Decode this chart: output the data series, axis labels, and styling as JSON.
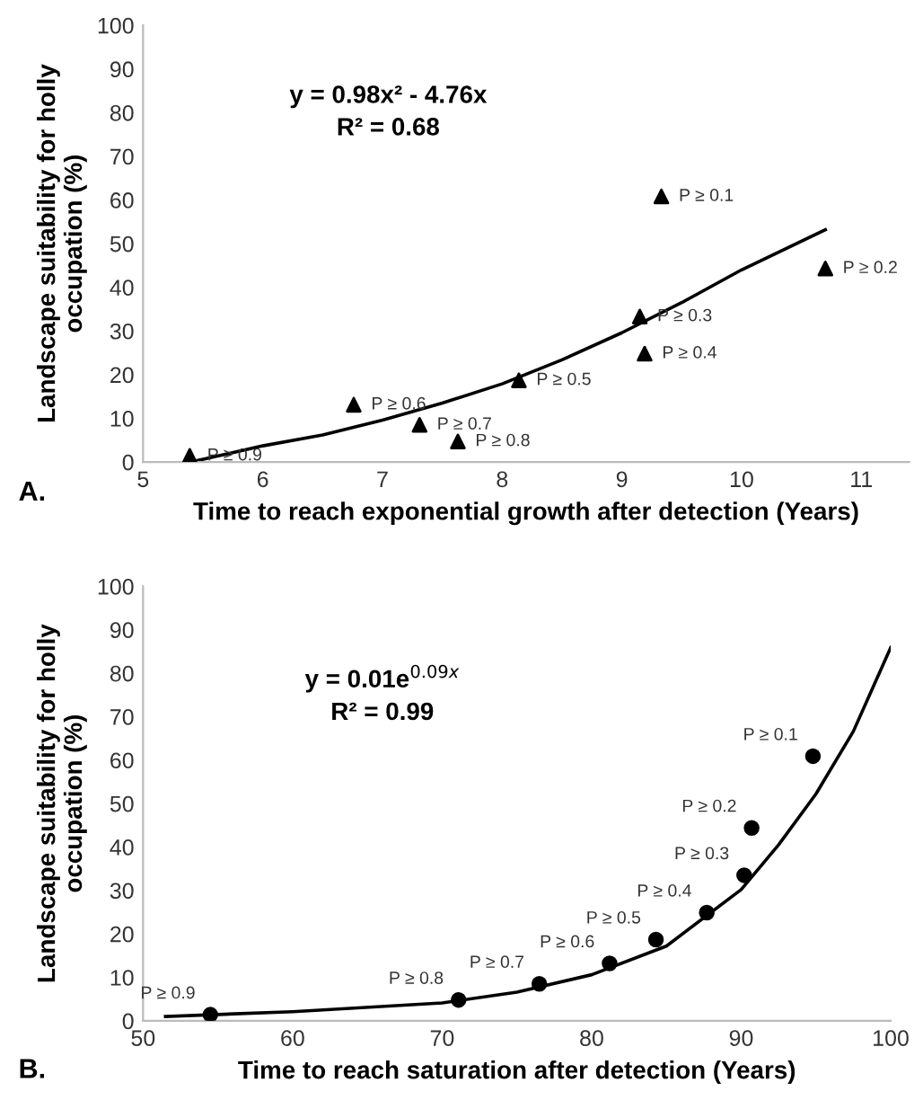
{
  "chart_data": [
    {
      "type": "scatter",
      "xlabel": "Time to reach exponential growth after detection (Years)",
      "ylabel": "Landscape suitability for holly\noccupation (%)",
      "xlim": [
        5,
        11.4
      ],
      "xticks": [
        5,
        6,
        7,
        8,
        9,
        10,
        11
      ],
      "ylim": [
        0,
        100
      ],
      "yticks": [
        0,
        10,
        20,
        30,
        40,
        50,
        60,
        70,
        80,
        90,
        100
      ],
      "grid": false,
      "legend": false,
      "series": [
        {
          "marker": "triangle",
          "color": "#000000",
          "x": [
            5.39,
            6.76,
            7.31,
            7.63,
            8.14,
            9.15,
            9.19,
            9.33,
            10.7
          ],
          "values": [
            1.4,
            13.1,
            8.5,
            4.7,
            18.7,
            33.3,
            24.8,
            60.8,
            44.3
          ]
        },
        {
          "type": "line",
          "marker": "none",
          "line_style": "solid",
          "color": "#000000",
          "x": [
            5.4,
            6,
            6.5,
            7,
            7.5,
            8,
            8.5,
            9,
            9.5,
            10,
            10.7
          ],
          "values": [
            0,
            3.7,
            6.2,
            9.6,
            13.5,
            17.9,
            23.4,
            29.6,
            36.5,
            44,
            53.2
          ]
        }
      ],
      "annotations": [
        "A.",
        "y = 0.98x² - 4.76x\nR² = 0.68",
        {
          "text": "P ≥ 0.9",
          "x": 5.39,
          "y": 1.4
        },
        {
          "text": "P ≥ 0.6",
          "x": 6.76,
          "y": 13.1
        },
        {
          "text": "P ≥ 0.7",
          "x": 7.31,
          "y": 8.5
        },
        {
          "text": "P ≥ 0.8",
          "x": 7.63,
          "y": 4.7
        },
        {
          "text": "P ≥ 0.5",
          "x": 8.14,
          "y": 18.7
        },
        {
          "text": "P ≥ 0.3",
          "x": 9.15,
          "y": 33.3
        },
        {
          "text": "P ≥ 0.4",
          "x": 9.19,
          "y": 24.8
        },
        {
          "text": "P ≥ 0.1",
          "x": 9.33,
          "y": 60.8
        },
        {
          "text": "P ≥ 0.2",
          "x": 10.7,
          "y": 44.3
        }
      ]
    },
    {
      "type": "scatter",
      "xlabel": "Time to reach saturation after detection (Years)",
      "ylabel": "Landscape suitability for holly\noccupation (%)",
      "xlim": [
        50,
        100
      ],
      "xticks": [
        50,
        60,
        70,
        80,
        90,
        100
      ],
      "ylim": [
        0,
        100
      ],
      "yticks": [
        0,
        10,
        20,
        30,
        40,
        50,
        60,
        70,
        80,
        90,
        100
      ],
      "grid": false,
      "legend": false,
      "series": [
        {
          "marker": "circle",
          "color": "#000000",
          "x": [
            54.5,
            71.1,
            76.5,
            81.2,
            84.3,
            87.7,
            90.2,
            90.7,
            94.8
          ],
          "values": [
            1.4,
            4.8,
            8.5,
            13.2,
            18.7,
            24.9,
            33.5,
            44.4,
            60.9
          ]
        },
        {
          "type": "line",
          "marker": "none",
          "line_style": "solid",
          "color": "#000000",
          "x": [
            51.5,
            60,
            70,
            75,
            80,
            85,
            90,
            92.5,
            95,
            97.5,
            100
          ],
          "values": [
            1.0,
            2.1,
            4.1,
            6.6,
            10.6,
            17.2,
            30.2,
            40.5,
            52.2,
            66.6,
            85.9
          ]
        }
      ],
      "annotations": [
        "B.",
        "y = 0.01e$^{0.09x}$\nR² = 0.99",
        {
          "text": "P ≥ 0.9",
          "x": 54.5,
          "y": 1.4
        },
        {
          "text": "P ≥ 0.8",
          "x": 71.1,
          "y": 4.8
        },
        {
          "text": "P ≥ 0.7",
          "x": 76.5,
          "y": 8.5
        },
        {
          "text": "P ≥ 0.6",
          "x": 81.2,
          "y": 13.2
        },
        {
          "text": "P ≥ 0.5",
          "x": 84.3,
          "y": 18.7
        },
        {
          "text": "P ≥ 0.4",
          "x": 87.7,
          "y": 24.9
        },
        {
          "text": "P ≥ 0.3",
          "x": 90.2,
          "y": 33.5
        },
        {
          "text": "P ≥ 0.2",
          "x": 90.7,
          "y": 44.4
        },
        {
          "text": "P ≥ 0.1",
          "x": 94.8,
          "y": 60.9
        }
      ]
    }
  ]
}
